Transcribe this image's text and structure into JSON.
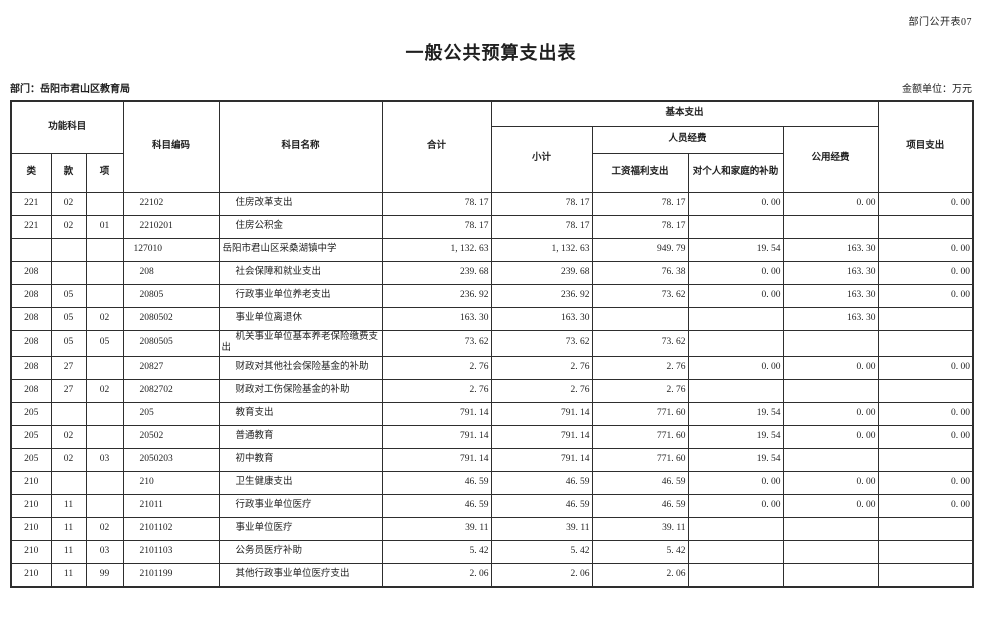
{
  "page": {
    "doc_code": "部门公开表07",
    "title": "一般公共预算支出表",
    "department": "部门：岳阳市君山区教育局",
    "unit": "金额单位：万元"
  },
  "table": {
    "headers": {
      "function_subject": "功能科目",
      "category": "类",
      "section": "款",
      "item": "项",
      "subject_code": "科目编码",
      "subject_name": "科目名称",
      "total": "合计",
      "basic_expenditure": "基本支出",
      "subtotal": "小计",
      "personnel_funds": "人员经费",
      "salary_welfare": "工资福利支出",
      "individual_family_subsidy": "对个人和家庭的补助",
      "public_funds": "公用经费",
      "project_expenditure": "项目支出"
    },
    "rows": [
      {
        "lei": "221",
        "kuan": "02",
        "xiang": "",
        "code": "22102",
        "name": "住房改革支出",
        "total": "78.17",
        "subtotal": "78.17",
        "salary": "78.17",
        "family": "0.00",
        "public": "0.00",
        "project": "0.00"
      },
      {
        "lei": "221",
        "kuan": "02",
        "xiang": "01",
        "code": "2210201",
        "name": "住房公积金",
        "total": "78.17",
        "subtotal": "78.17",
        "salary": "78.17",
        "family": "",
        "public": "",
        "project": ""
      },
      {
        "lei": "",
        "kuan": "",
        "xiang": "",
        "code": "127010",
        "name": "岳阳市君山区采桑湖镇中学",
        "total": "1,132.63",
        "subtotal": "1,132.63",
        "salary": "949.79",
        "family": "19.54",
        "public": "163.30",
        "project": "0.00",
        "flush": true
      },
      {
        "lei": "208",
        "kuan": "",
        "xiang": "",
        "code": "208",
        "name": "社会保障和就业支出",
        "total": "239.68",
        "subtotal": "239.68",
        "salary": "76.38",
        "family": "0.00",
        "public": "163.30",
        "project": "0.00"
      },
      {
        "lei": "208",
        "kuan": "05",
        "xiang": "",
        "code": "20805",
        "name": "行政事业单位养老支出",
        "total": "236.92",
        "subtotal": "236.92",
        "salary": "73.62",
        "family": "0.00",
        "public": "163.30",
        "project": "0.00"
      },
      {
        "lei": "208",
        "kuan": "05",
        "xiang": "02",
        "code": "2080502",
        "name": "事业单位离退休",
        "total": "163.30",
        "subtotal": "163.30",
        "salary": "",
        "family": "",
        "public": "163.30",
        "project": ""
      },
      {
        "lei": "208",
        "kuan": "05",
        "xiang": "05",
        "code": "2080505",
        "name": "机关事业单位基本养老保险缴费支出",
        "total": "73.62",
        "subtotal": "73.62",
        "salary": "73.62",
        "family": "",
        "public": "",
        "project": ""
      },
      {
        "lei": "208",
        "kuan": "27",
        "xiang": "",
        "code": "20827",
        "name": "财政对其他社会保险基金的补助",
        "total": "2.76",
        "subtotal": "2.76",
        "salary": "2.76",
        "family": "0.00",
        "public": "0.00",
        "project": "0.00"
      },
      {
        "lei": "208",
        "kuan": "27",
        "xiang": "02",
        "code": "2082702",
        "name": "财政对工伤保险基金的补助",
        "total": "2.76",
        "subtotal": "2.76",
        "salary": "2.76",
        "family": "",
        "public": "",
        "project": ""
      },
      {
        "lei": "205",
        "kuan": "",
        "xiang": "",
        "code": "205",
        "name": "教育支出",
        "total": "791.14",
        "subtotal": "791.14",
        "salary": "771.60",
        "family": "19.54",
        "public": "0.00",
        "project": "0.00"
      },
      {
        "lei": "205",
        "kuan": "02",
        "xiang": "",
        "code": "20502",
        "name": "普通教育",
        "total": "791.14",
        "subtotal": "791.14",
        "salary": "771.60",
        "family": "19.54",
        "public": "0.00",
        "project": "0.00"
      },
      {
        "lei": "205",
        "kuan": "02",
        "xiang": "03",
        "code": "2050203",
        "name": "初中教育",
        "total": "791.14",
        "subtotal": "791.14",
        "salary": "771.60",
        "family": "19.54",
        "public": "",
        "project": ""
      },
      {
        "lei": "210",
        "kuan": "",
        "xiang": "",
        "code": "210",
        "name": "卫生健康支出",
        "total": "46.59",
        "subtotal": "46.59",
        "salary": "46.59",
        "family": "0.00",
        "public": "0.00",
        "project": "0.00"
      },
      {
        "lei": "210",
        "kuan": "11",
        "xiang": "",
        "code": "21011",
        "name": "行政事业单位医疗",
        "total": "46.59",
        "subtotal": "46.59",
        "salary": "46.59",
        "family": "0.00",
        "public": "0.00",
        "project": "0.00"
      },
      {
        "lei": "210",
        "kuan": "11",
        "xiang": "02",
        "code": "2101102",
        "name": "事业单位医疗",
        "total": "39.11",
        "subtotal": "39.11",
        "salary": "39.11",
        "family": "",
        "public": "",
        "project": ""
      },
      {
        "lei": "210",
        "kuan": "11",
        "xiang": "03",
        "code": "2101103",
        "name": "公务员医疗补助",
        "total": "5.42",
        "subtotal": "5.42",
        "salary": "5.42",
        "family": "",
        "public": "",
        "project": ""
      },
      {
        "lei": "210",
        "kuan": "11",
        "xiang": "99",
        "code": "2101199",
        "name": "其他行政事业单位医疗支出",
        "total": "2.06",
        "subtotal": "2.06",
        "salary": "2.06",
        "family": "",
        "public": "",
        "project": ""
      }
    ]
  }
}
